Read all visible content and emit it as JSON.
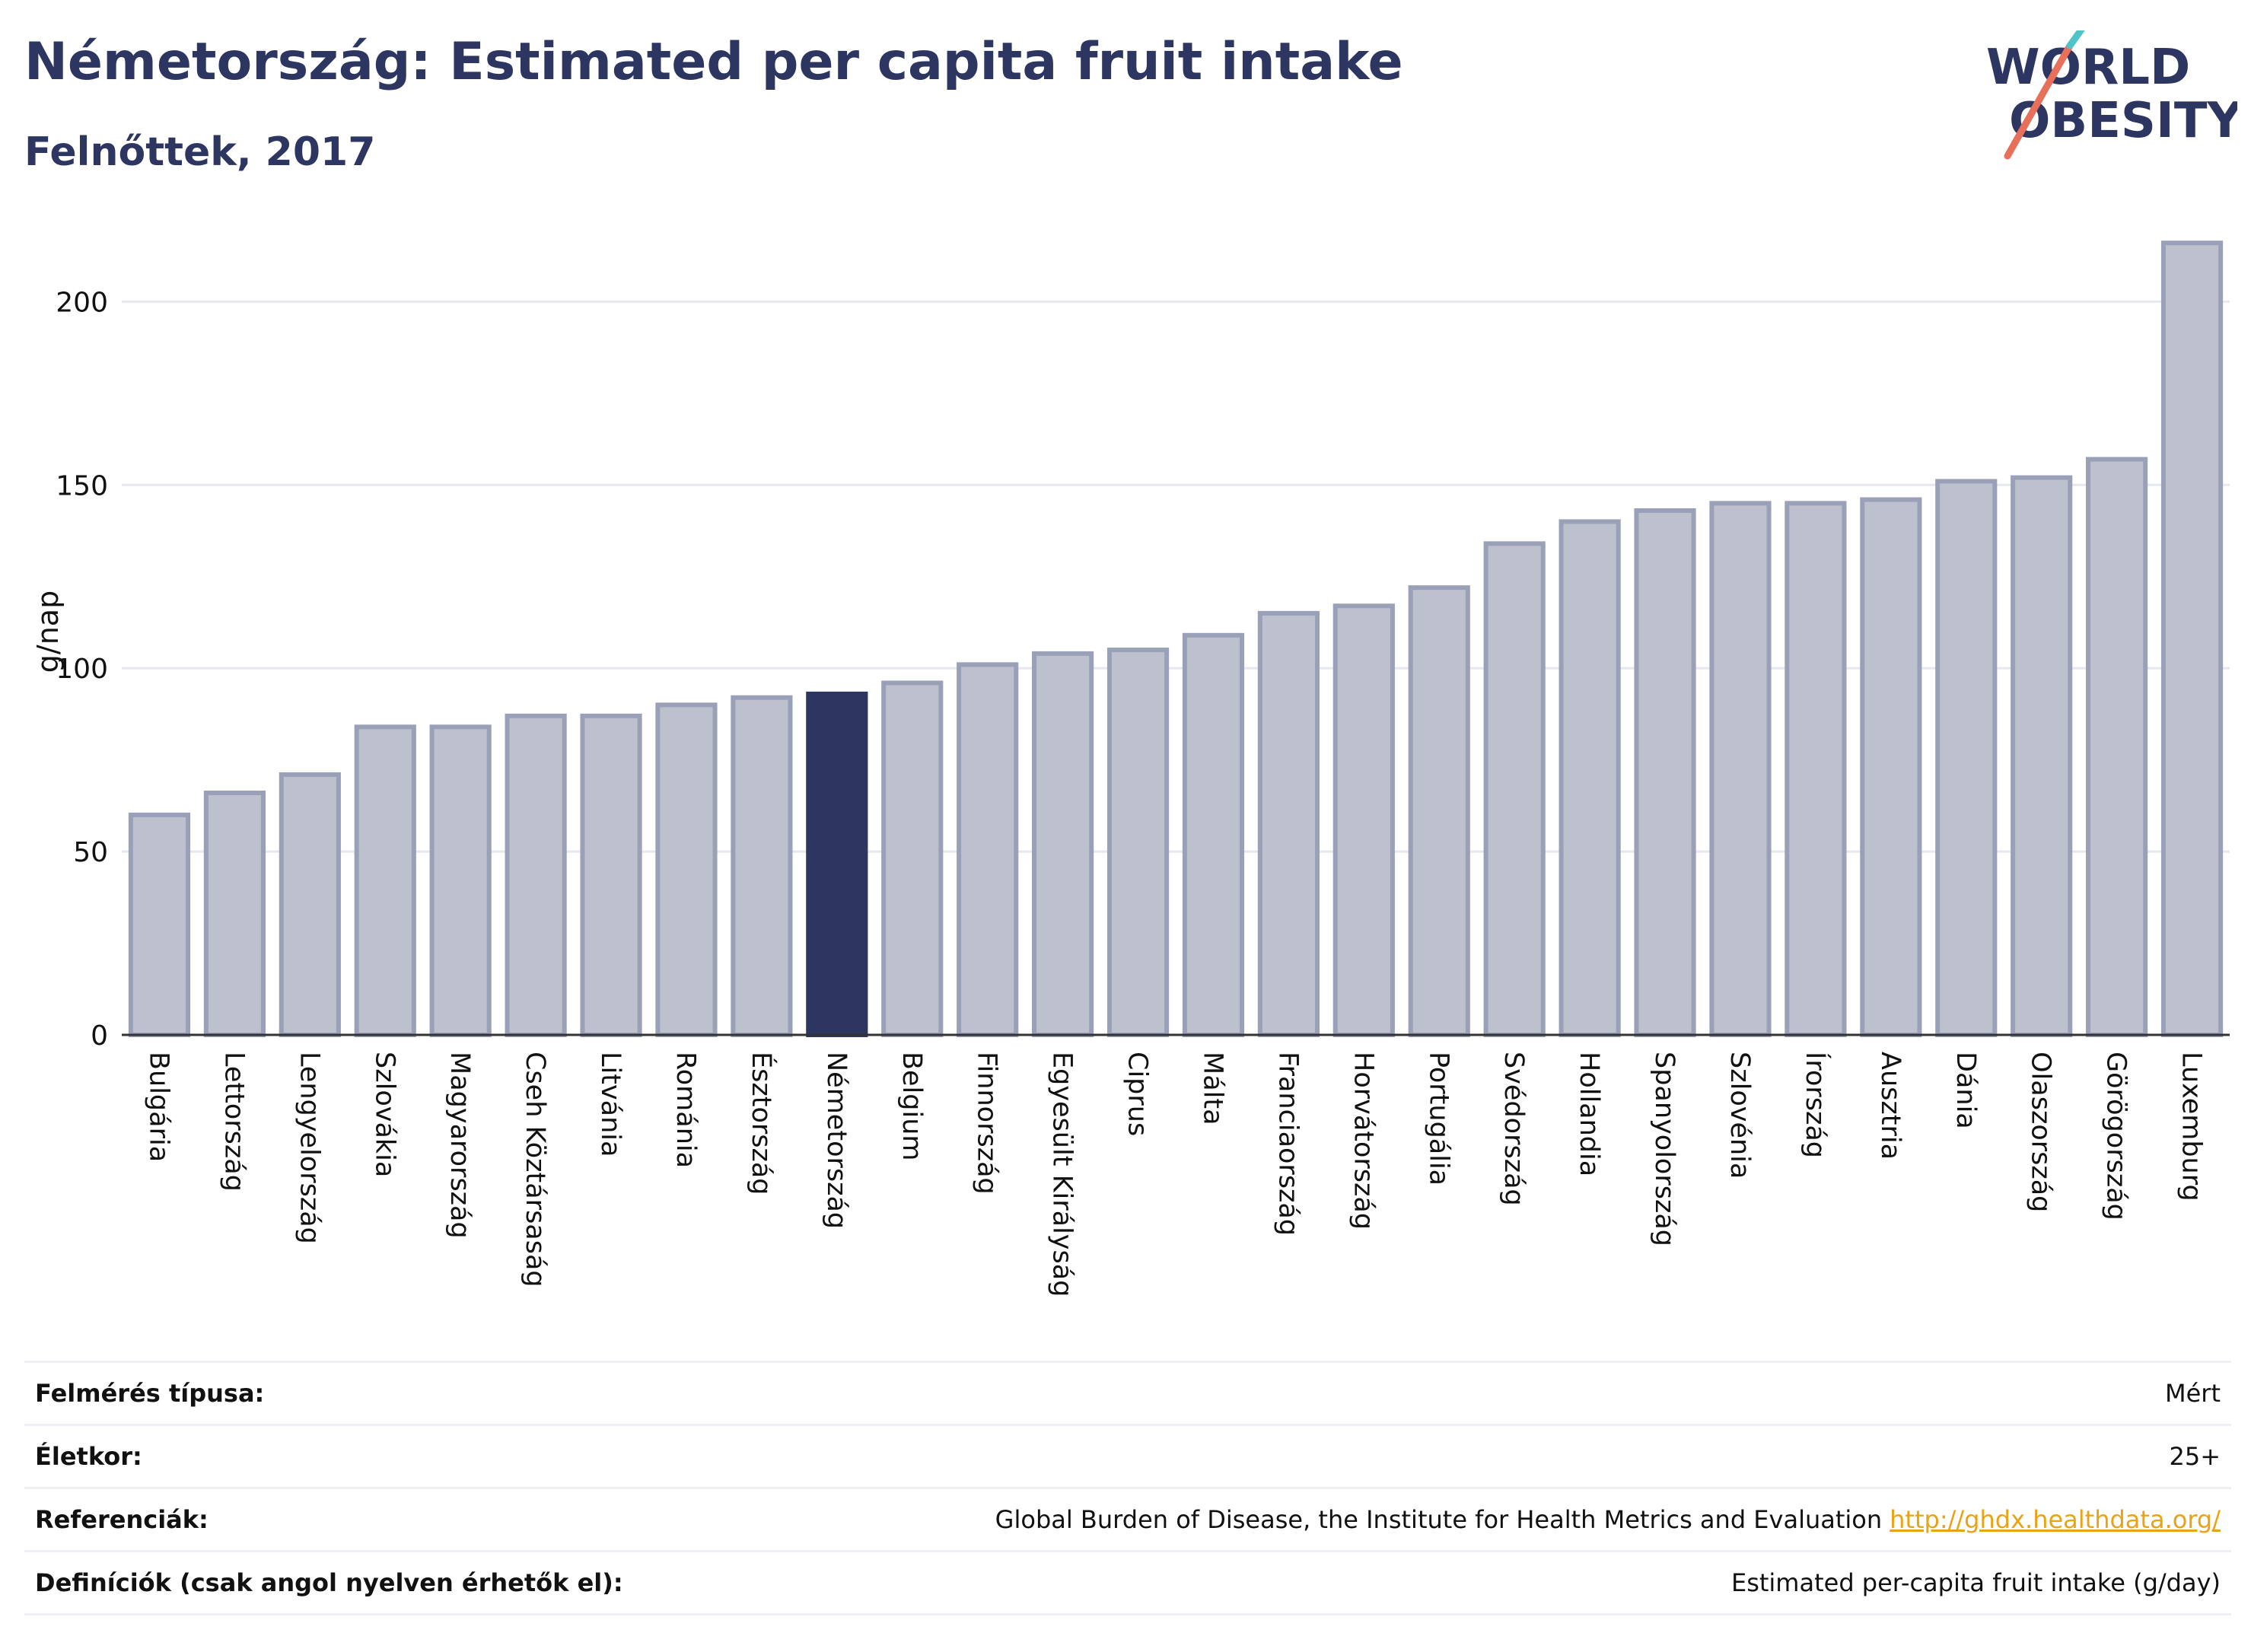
{
  "header": {
    "title": "Németország: Estimated per capita fruit intake",
    "subtitle": "Felnőttek, 2017"
  },
  "logo": {
    "line1": "WORLD",
    "line2": "OBESITY"
  },
  "chart_data": {
    "type": "bar",
    "ylabel": "g/nap",
    "ylim": [
      0,
      220
    ],
    "yticks": [
      0,
      50,
      100,
      150,
      200
    ],
    "grid": true,
    "highlight": "Németország",
    "colors": {
      "bar": "#bdc1ce",
      "bar_edge": "#9aa0b8",
      "highlight": "#2d3561"
    },
    "categories": [
      "Bulgária",
      "Lettország",
      "Lengyelország",
      "Szlovákia",
      "Magyarország",
      "Cseh Köztársaság",
      "Litvánia",
      "Románia",
      "Észtország",
      "Németország",
      "Belgium",
      "Finnország",
      "Egyesült Királyság",
      "Ciprus",
      "Málta",
      "Franciaország",
      "Horvátország",
      "Portugália",
      "Svédország",
      "Hollandia",
      "Spanyolország",
      "Szlovénia",
      "Írország",
      "Ausztria",
      "Dánia",
      "Olaszország",
      "Görögország",
      "Luxemburg"
    ],
    "values": [
      60,
      66,
      71,
      84,
      84,
      87,
      87,
      90,
      92,
      93,
      96,
      101,
      104,
      105,
      109,
      115,
      117,
      122,
      134,
      140,
      143,
      145,
      145,
      146,
      151,
      152,
      157,
      216
    ]
  },
  "meta": [
    {
      "label": "Felmérés típusa:",
      "value": "Mért"
    },
    {
      "label": "Életkor:",
      "value": "25+"
    },
    {
      "label": "Referenciák:",
      "value": "Global Burden of Disease, the Institute for Health Metrics and Evaluation",
      "link": "http://ghdx.healthdata.org/"
    },
    {
      "label": "Definíciók (csak angol nyelven érhetők el):",
      "value": "Estimated per-capita fruit intake (g/day)"
    }
  ]
}
